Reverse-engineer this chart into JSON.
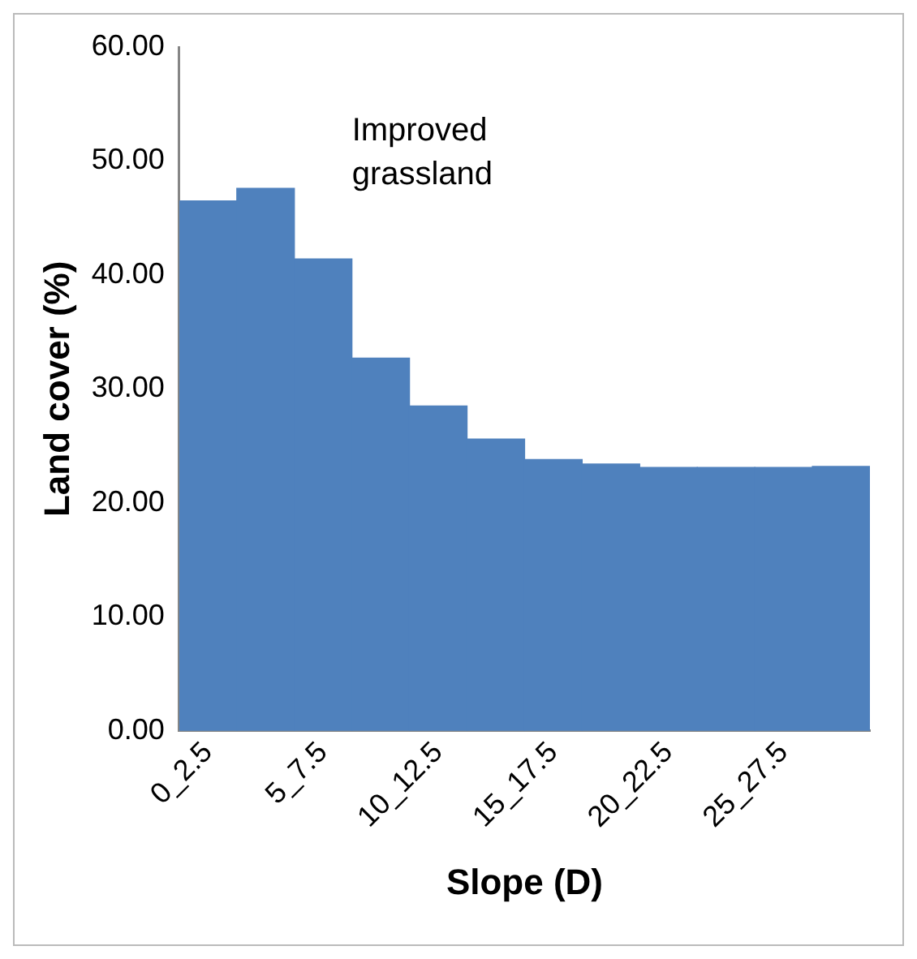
{
  "chart_data": {
    "type": "bar",
    "xlabel": "Slope (D)",
    "ylabel": "Land cover (%)",
    "annotations": [
      "Improved grassland"
    ],
    "categories": [
      "0_2.5",
      null,
      "5_7.5",
      null,
      "10_12.5",
      null,
      "15_17.5",
      null,
      "20_22.5",
      null,
      "25_27.5",
      null
    ],
    "values": [
      46.5,
      47.6,
      41.4,
      32.7,
      28.5,
      25.6,
      23.8,
      23.4,
      23.1,
      23.1,
      23.1,
      23.2
    ],
    "color": "#4f81bd",
    "ylim": [
      0,
      60
    ],
    "yticks": [
      {
        "value": 0,
        "label": "0.00"
      },
      {
        "value": 10,
        "label": "10.00"
      },
      {
        "value": 20,
        "label": "20.00"
      },
      {
        "value": 30,
        "label": "30.00"
      },
      {
        "value": 40,
        "label": "40.00"
      },
      {
        "value": 50,
        "label": "50.00"
      },
      {
        "value": 60,
        "label": "60.00"
      }
    ],
    "grid": false,
    "legend": false
  }
}
